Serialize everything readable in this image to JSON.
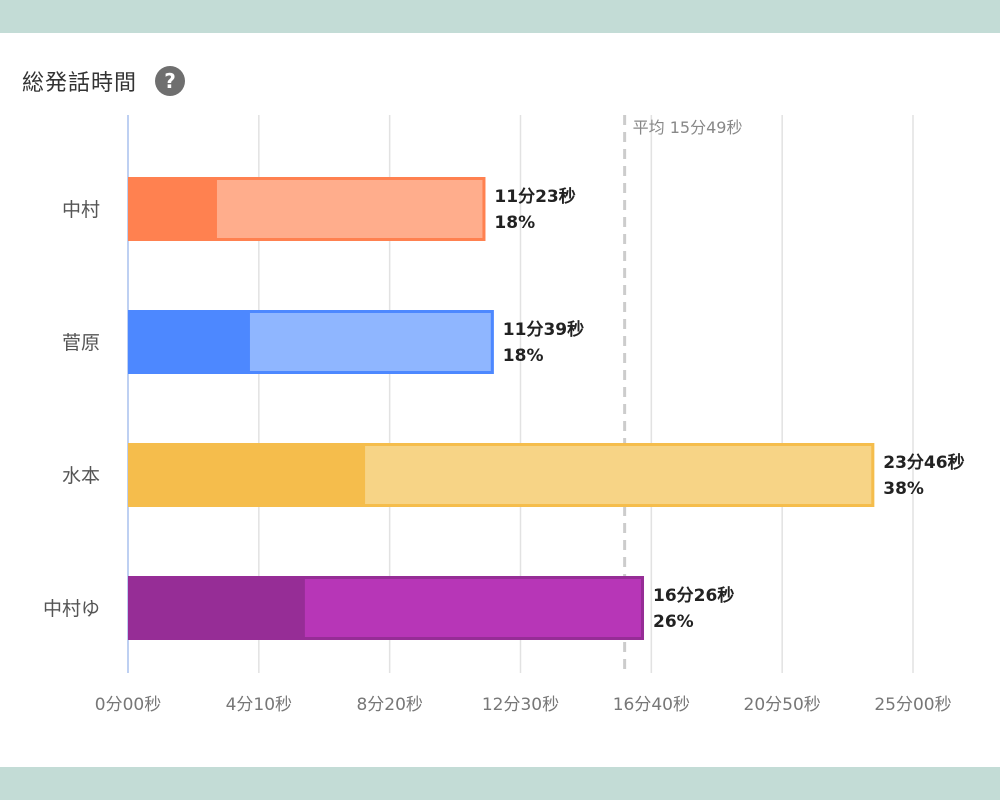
{
  "chart_data": {
    "type": "bar",
    "orientation": "horizontal",
    "stacked": true,
    "title": "総発話時間",
    "categories": [
      "中村",
      "菅原",
      "水本",
      "中村ゆ"
    ],
    "values_seconds": [
      683,
      699,
      1426,
      986
    ],
    "value_labels": [
      "11分23秒",
      "11分39秒",
      "23分46秒",
      "16分26秒"
    ],
    "percent_labels": [
      "18%",
      "18%",
      "38%",
      "26%"
    ],
    "dark_segment_seconds": [
      170,
      233,
      453,
      338
    ],
    "colors_dark": [
      "#ff8150",
      "#4d88ff",
      "#f5bd4c",
      "#962d96"
    ],
    "colors_light": [
      "#ffad8c",
      "#8fb6ff",
      "#f7d486",
      "#b736b7"
    ],
    "xlim_seconds": [
      0,
      1500
    ],
    "x_tick_values_seconds": [
      0,
      250,
      500,
      750,
      1000,
      1250,
      1500
    ],
    "x_tick_labels": [
      "0分00秒",
      "4分10秒",
      "8分20秒",
      "12分30秒",
      "16分40秒",
      "20分50秒",
      "25分00秒"
    ],
    "average": {
      "value_seconds": 949,
      "label": "平均 15分49秒"
    },
    "grid": true
  },
  "help_icon": {
    "glyph": "?",
    "name": "help-icon"
  }
}
